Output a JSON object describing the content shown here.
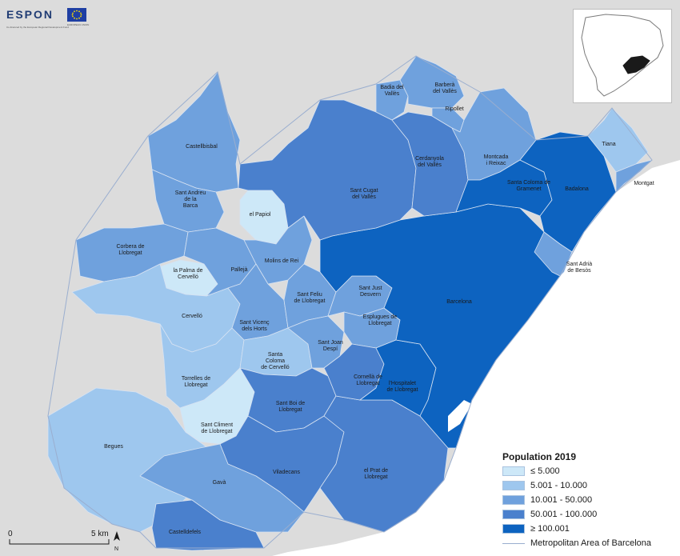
{
  "branding": {
    "logo_text": "ESPON",
    "cofunded_note": "Co-financed by the European Regional Development Fund",
    "eu_note": "EUROPEAN UNION"
  },
  "legend": {
    "title": "Population 2019",
    "classes": [
      {
        "label": "≤ 5.000",
        "color": "#cde8f8"
      },
      {
        "label": "5.001 - 10.000",
        "color": "#9ec7ee"
      },
      {
        "label": "10.001 - 50.000",
        "color": "#6fa1dd"
      },
      {
        "label": "50.001 - 100.000",
        "color": "#4a80cd"
      },
      {
        "label": "≥ 100.001",
        "color": "#0d63c0"
      }
    ],
    "boundary_label": "Metropolitan Area of Barcelona"
  },
  "scalebar": {
    "start": "0",
    "end": "5 km",
    "north": "N"
  },
  "municipalities": [
    {
      "name": "Badia del Vallès",
      "population_class": "10.001 - 50.000"
    },
    {
      "name": "Barberà del Vallès",
      "population_class": "10.001 - 50.000"
    },
    {
      "name": "Ripollet",
      "population_class": "10.001 - 50.000"
    },
    {
      "name": "Castellbisbal",
      "population_class": "10.001 - 50.000"
    },
    {
      "name": "Cerdanyola del Vallès",
      "population_class": "50.001 - 100.000"
    },
    {
      "name": "Montcada i Reixac",
      "population_class": "10.001 - 50.000"
    },
    {
      "name": "Tiana",
      "population_class": "5.001 - 10.000"
    },
    {
      "name": "Santa Coloma de Gramenet",
      "population_class": "≥ 100.001"
    },
    {
      "name": "Badalona",
      "population_class": "≥ 100.001"
    },
    {
      "name": "Montgat",
      "population_class": "10.001 - 50.000"
    },
    {
      "name": "Sant Andreu de la Barca",
      "population_class": "10.001 - 50.000"
    },
    {
      "name": "Sant Cugat del Vallès",
      "population_class": "50.001 - 100.000"
    },
    {
      "name": "el Papiol",
      "population_class": "≤ 5.000"
    },
    {
      "name": "Corbera de Llobregat",
      "population_class": "10.001 - 50.000"
    },
    {
      "name": "Molins de Rei",
      "population_class": "10.001 - 50.000"
    },
    {
      "name": "la Palma de Cervelló",
      "population_class": "≤ 5.000"
    },
    {
      "name": "Pallejà",
      "population_class": "10.001 - 50.000"
    },
    {
      "name": "Sant Adrià de Besòs",
      "population_class": "10.001 - 50.000"
    },
    {
      "name": "Sant Just Desvern",
      "population_class": "10.001 - 50.000"
    },
    {
      "name": "Sant Feliu de Llobregat",
      "population_class": "10.001 - 50.000"
    },
    {
      "name": "Barcelona",
      "population_class": "≥ 100.001"
    },
    {
      "name": "Cervelló",
      "population_class": "5.001 - 10.000"
    },
    {
      "name": "Sant Vicenç dels Horts",
      "population_class": "10.001 - 50.000"
    },
    {
      "name": "Esplugues de Llobregat",
      "population_class": "10.001 - 50.000"
    },
    {
      "name": "Sant Joan Despí",
      "population_class": "10.001 - 50.000"
    },
    {
      "name": "Santa Coloma de Cervelló",
      "population_class": "5.001 - 10.000"
    },
    {
      "name": "Torrelles de Llobregat",
      "population_class": "5.001 - 10.000"
    },
    {
      "name": "Cornellà de Llobregat",
      "population_class": "50.001 - 100.000"
    },
    {
      "name": "l'Hospitalet de Llobregat",
      "population_class": "≥ 100.001"
    },
    {
      "name": "Sant Boi de Llobregat",
      "population_class": "50.001 - 100.000"
    },
    {
      "name": "Sant Climent de Llobregat",
      "population_class": "≤ 5.000"
    },
    {
      "name": "Begues",
      "population_class": "5.001 - 10.000"
    },
    {
      "name": "Viladecans",
      "population_class": "50.001 - 100.000"
    },
    {
      "name": "el Prat de Llobregat",
      "population_class": "50.001 - 100.000"
    },
    {
      "name": "Gavà",
      "population_class": "10.001 - 50.000"
    },
    {
      "name": "Castelldefels",
      "population_class": "50.001 - 100.000"
    }
  ]
}
